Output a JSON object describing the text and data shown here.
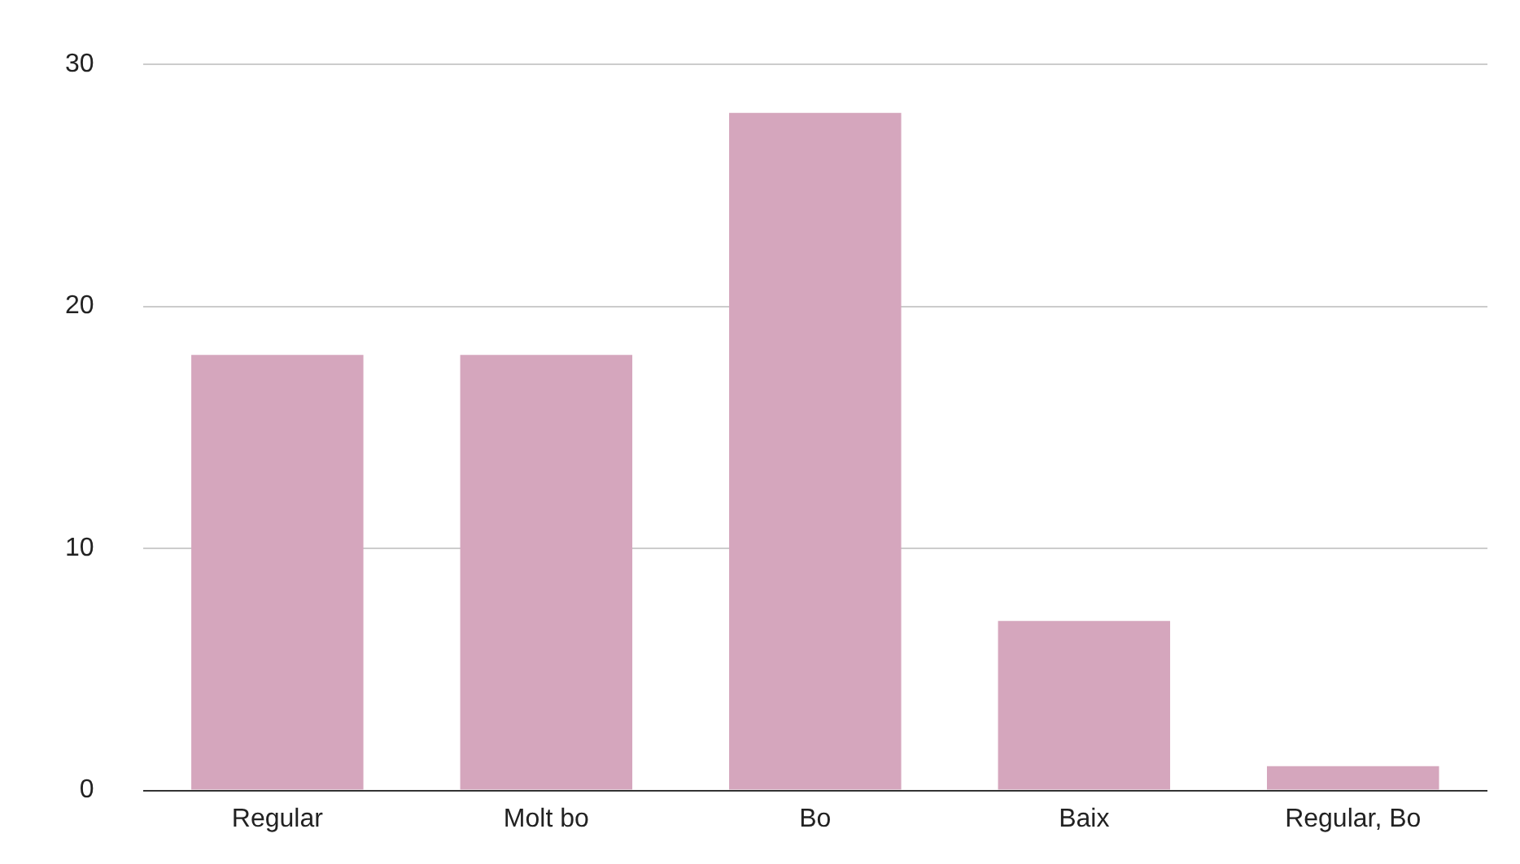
{
  "chart_data": {
    "type": "bar",
    "categories": [
      "Regular",
      "Molt bo",
      "Bo",
      "Baix",
      "Regular, Bo"
    ],
    "values": [
      18,
      18,
      28,
      7,
      1
    ],
    "color": "#d5a6bd",
    "ylim": [
      0,
      30
    ],
    "yticks": [
      0,
      10,
      20,
      30
    ],
    "grid": "y",
    "legend": false
  }
}
